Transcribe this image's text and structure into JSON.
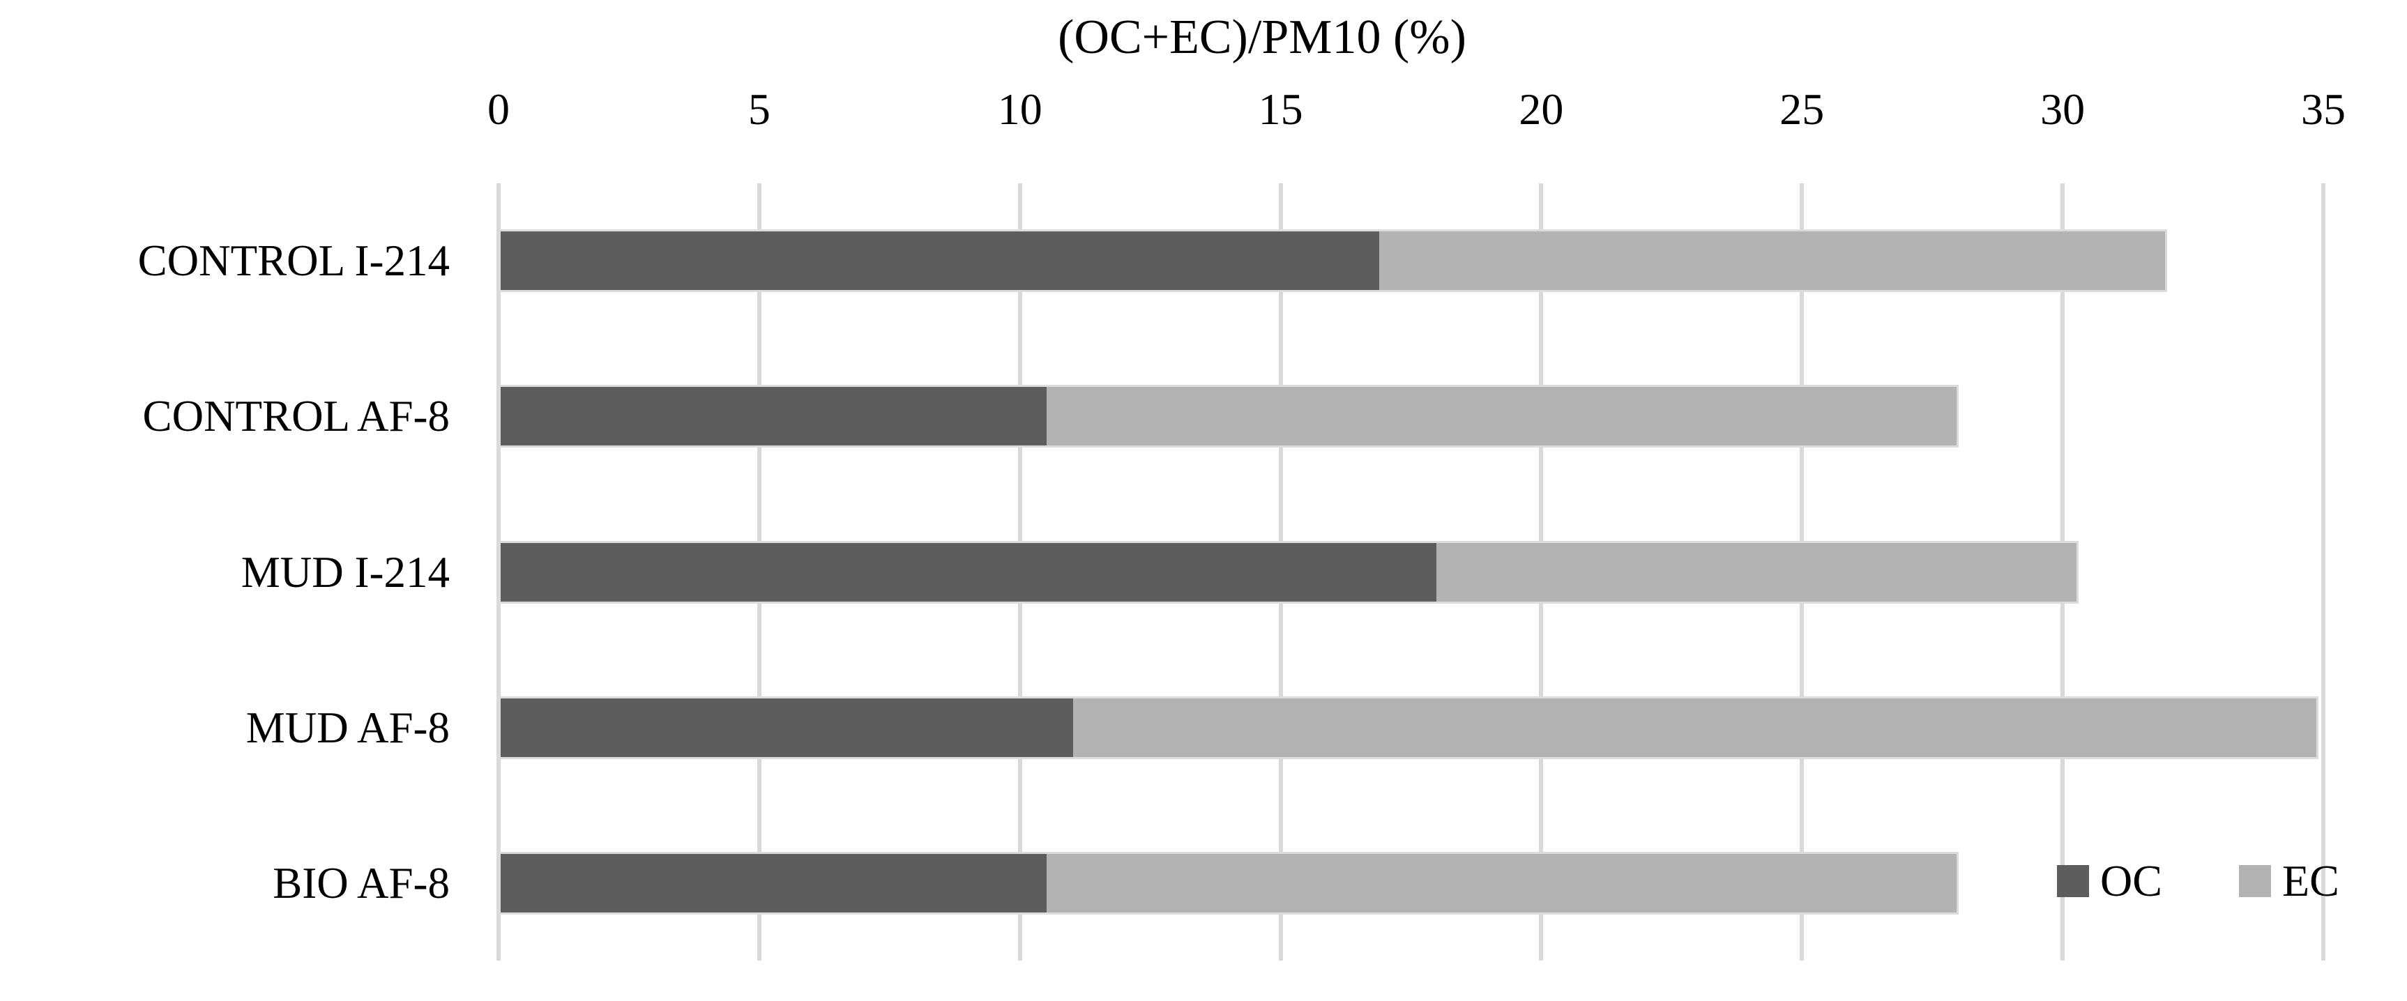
{
  "chart_data": {
    "type": "bar",
    "orientation": "horizontal",
    "stacked": true,
    "title": "(OC+EC)/PM10 (%)",
    "categories": [
      "CONTROL I-214",
      "CONTROL AF-8",
      "MUD I-214",
      "MUD AF-8",
      "BIO AF-8"
    ],
    "series": [
      {
        "name": "OC",
        "color": "#5d5d5d",
        "values": [
          16.9,
          10.5,
          18.0,
          11.0,
          10.5
        ]
      },
      {
        "name": "EC",
        "color": "#b3b3b3",
        "values": [
          15.1,
          17.5,
          12.3,
          23.9,
          17.5
        ]
      }
    ],
    "totals": [
      32.0,
      28.0,
      30.3,
      34.9,
      28.0
    ],
    "xlabel": "",
    "ylabel": "",
    "xlim": [
      0,
      35
    ],
    "xticks": [
      0,
      5,
      10,
      15,
      20,
      25,
      30,
      35
    ],
    "grid": "vertical",
    "gridline_color": "#d9d9d9",
    "legend_position": "inside-bottom-right",
    "background": "#ffffff",
    "text_color": "#000000"
  }
}
